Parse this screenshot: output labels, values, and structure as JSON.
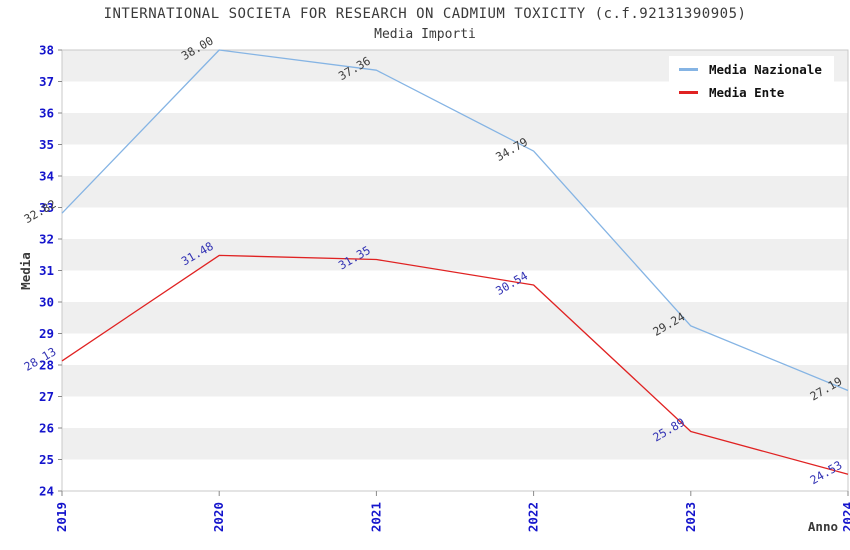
{
  "title": "INTERNATIONAL SOCIETA FOR RESEARCH ON CADMIUM TOXICITY (c.f.92131390905)",
  "subtitle": "Media Importi",
  "colors": {
    "tick_label": "#1414cc",
    "band_gray": "#efefef",
    "band_white": "#ffffff",
    "plot_border": "#c9c9c9",
    "tick_mark": "#8a8a8a",
    "axis_title": "#3a3a3a"
  },
  "chart_data": {
    "type": "line",
    "x": [
      "2019",
      "2020",
      "2021",
      "2022",
      "2023",
      "2024"
    ],
    "series": [
      {
        "name": "Media Nazionale",
        "color": "#85b4e4",
        "label_color": "#3d3d3d",
        "values": [
          32.82,
          38.0,
          37.36,
          34.79,
          29.24,
          27.19
        ]
      },
      {
        "name": "Media Ente",
        "color": "#e02222",
        "label_color": "#3333b4",
        "values": [
          28.13,
          31.48,
          31.35,
          30.54,
          25.89,
          24.53
        ]
      }
    ],
    "title": "Media Importi",
    "xlabel": "Anno",
    "ylabel": "Media",
    "ylim": [
      24,
      38
    ],
    "y_ticks": [
      24,
      25,
      26,
      27,
      28,
      29,
      30,
      31,
      32,
      33,
      34,
      35,
      36,
      37,
      38
    ],
    "grid": "alternating-horizontal-bands",
    "legend_position": "top-right",
    "data_label_rotation_deg": -30,
    "x_tick_rotation_deg": -90
  }
}
